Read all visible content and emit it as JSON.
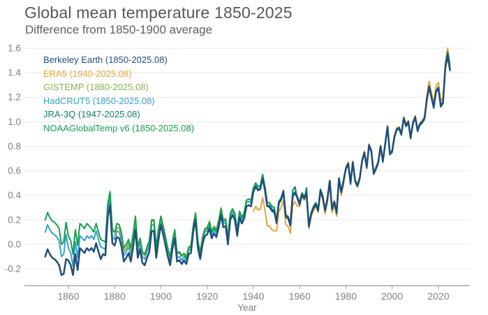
{
  "chart_data": {
    "type": "line",
    "title": "Global mean temperature 1850-2025",
    "subtitle": "Difference from 1850-1900 average",
    "xlabel": "Year",
    "ylabel": "",
    "grid": true,
    "legend_position": "top-left",
    "xlim": [
      1841,
      2033.6
    ],
    "ylim": [
      -0.2,
      1.6
    ],
    "x_ticks": [
      1860,
      1880,
      1900,
      1920,
      1940,
      1960,
      1980,
      2000,
      2020
    ],
    "y_ticks": [
      1.6,
      1.4,
      1.2,
      1.0,
      0.8,
      0.6,
      0.4,
      0.2,
      0.0,
      -0.2
    ],
    "axis_color": "#a6a8ab",
    "grid_color": "#e9e9e9",
    "tick_label_color": "#808184",
    "series": [
      {
        "name": "berkeley-earth",
        "label": "Berkeley Earth (1850-2025.08)",
        "color": "#1f4e79",
        "start_year": 1850,
        "z": 6,
        "line_width": 2.5,
        "values": [
          -0.1,
          -0.04,
          -0.08,
          -0.11,
          -0.12,
          -0.14,
          -0.17,
          -0.25,
          -0.24,
          -0.12,
          -0.13,
          -0.17,
          -0.25,
          -0.08,
          -0.21,
          -0.03,
          -0.05,
          -0.07,
          -0.03,
          -0.05,
          -0.03,
          -0.06,
          0.01,
          -0.06,
          -0.12,
          -0.08,
          -0.09,
          0.22,
          0.32,
          0.01,
          -0.01,
          0.06,
          0.05,
          -0.02,
          -0.14,
          -0.11,
          -0.07,
          -0.14,
          -0.02,
          0.12,
          -0.11,
          -0.04,
          -0.15,
          -0.17,
          -0.11,
          -0.06,
          0.11,
          0.11,
          -0.11,
          0.04,
          0.16,
          0.08,
          -0.01,
          -0.1,
          -0.17,
          -0.04,
          0.05,
          -0.14,
          -0.13,
          -0.16,
          -0.13,
          -0.16,
          -0.08,
          -0.07,
          0.1,
          0.2,
          -0.03,
          -0.12,
          0.0,
          0.07,
          0.08,
          0.13,
          0.05,
          0.09,
          0.06,
          0.14,
          0.24,
          0.14,
          0.15,
          0.0,
          0.2,
          0.24,
          0.2,
          0.07,
          0.22,
          0.17,
          0.21,
          0.31,
          0.32,
          0.31,
          0.43,
          0.47,
          0.44,
          0.45,
          0.54,
          0.44,
          0.31,
          0.31,
          0.28,
          0.27,
          0.18,
          0.34,
          0.37,
          0.43,
          0.23,
          0.22,
          0.16,
          0.39,
          0.42,
          0.38,
          0.33,
          0.41,
          0.38,
          0.41,
          0.15,
          0.25,
          0.3,
          0.33,
          0.28,
          0.44,
          0.39,
          0.28,
          0.37,
          0.52,
          0.29,
          0.35,
          0.26,
          0.54,
          0.43,
          0.52,
          0.62,
          0.66,
          0.5,
          0.67,
          0.52,
          0.48,
          0.54,
          0.68,
          0.75,
          0.63,
          0.81,
          0.76,
          0.58,
          0.62,
          0.67,
          0.8,
          0.68,
          0.82,
          0.96,
          0.74,
          0.76,
          0.88,
          0.94,
          0.95,
          0.9,
          1.03,
          0.97,
          1.0,
          0.87,
          0.99,
          1.04,
          0.93,
          0.98,
          1.0,
          1.03,
          1.18,
          1.29,
          1.2,
          1.12,
          1.25,
          1.28,
          1.13,
          1.16,
          1.44,
          1.54,
          1.42
        ]
      },
      {
        "name": "era5",
        "label": "ERA5 (1940-2025.08)",
        "color": "#e8a33c",
        "start_year": 1940,
        "z": 4,
        "line_width": 2,
        "values": [
          0.27,
          0.31,
          0.28,
          0.29,
          0.38,
          0.28,
          0.15,
          0.15,
          0.12,
          0.11,
          0.11,
          0.27,
          0.3,
          0.36,
          0.16,
          0.15,
          0.09,
          0.32,
          0.35,
          0.31,
          0.31,
          0.39,
          0.36,
          0.39,
          0.13,
          0.23,
          0.28,
          0.31,
          0.26,
          0.42,
          0.36,
          0.25,
          0.34,
          0.49,
          0.26,
          0.32,
          0.23,
          0.51,
          0.4,
          0.49,
          0.63,
          0.67,
          0.51,
          0.68,
          0.53,
          0.49,
          0.55,
          0.69,
          0.76,
          0.64,
          0.82,
          0.77,
          0.59,
          0.63,
          0.68,
          0.81,
          0.69,
          0.83,
          0.97,
          0.75,
          0.77,
          0.89,
          0.95,
          0.96,
          0.91,
          1.04,
          0.98,
          1.01,
          0.88,
          1.0,
          1.05,
          0.94,
          0.99,
          1.01,
          1.04,
          1.22,
          1.33,
          1.24,
          1.16,
          1.29,
          1.32,
          1.17,
          1.2,
          1.48,
          1.6,
          1.47
        ]
      },
      {
        "name": "gistemp",
        "label": "GISTEMP (1880-2025.08)",
        "color": "#84b54a",
        "start_year": 1880,
        "z": 2,
        "line_width": 2,
        "values": [
          0.07,
          0.14,
          0.13,
          0.06,
          -0.06,
          -0.03,
          0.01,
          -0.06,
          0.06,
          0.2,
          -0.03,
          0.04,
          -0.07,
          -0.09,
          -0.03,
          0.02,
          0.19,
          0.19,
          -0.03,
          0.12,
          0.22,
          0.14,
          0.05,
          -0.04,
          -0.11,
          0.02,
          0.11,
          -0.08,
          -0.07,
          -0.1,
          -0.07,
          -0.1,
          -0.02,
          -0.01,
          0.16,
          0.26,
          0.03,
          -0.06,
          0.06,
          0.13,
          0.14,
          0.19,
          0.11,
          0.15,
          0.12,
          0.2,
          0.3,
          0.2,
          0.21,
          0.06,
          0.25,
          0.29,
          0.25,
          0.12,
          0.27,
          0.22,
          0.26,
          0.36,
          0.37,
          0.36,
          0.46,
          0.5,
          0.47,
          0.48,
          0.57,
          0.47,
          0.34,
          0.34,
          0.31,
          0.3,
          0.19,
          0.35,
          0.38,
          0.44,
          0.24,
          0.23,
          0.17,
          0.4,
          0.43,
          0.39,
          0.34,
          0.42,
          0.39,
          0.42,
          0.16,
          0.26,
          0.31,
          0.34,
          0.29,
          0.45,
          0.39,
          0.28,
          0.37,
          0.52,
          0.29,
          0.35,
          0.26,
          0.54,
          0.43,
          0.52,
          0.62,
          0.66,
          0.5,
          0.67,
          0.52,
          0.48,
          0.54,
          0.68,
          0.75,
          0.63,
          0.81,
          0.76,
          0.58,
          0.62,
          0.67,
          0.8,
          0.68,
          0.82,
          0.96,
          0.74,
          0.76,
          0.88,
          0.94,
          0.95,
          0.9,
          1.03,
          0.97,
          1.0,
          0.87,
          0.99,
          1.04,
          0.93,
          0.98,
          1.0,
          1.03,
          1.18,
          1.29,
          1.2,
          1.12,
          1.25,
          1.28,
          1.13,
          1.16,
          1.46,
          1.56,
          1.45
        ]
      },
      {
        "name": "hadcrut5",
        "label": "HadCRUT5 (1850-2025.08)",
        "color": "#35a1cd",
        "start_year": 1850,
        "z": 1,
        "line_width": 2,
        "values": [
          0.1,
          0.16,
          0.12,
          0.09,
          0.08,
          0.06,
          0.03,
          -0.1,
          -0.08,
          0.08,
          -0.03,
          -0.07,
          -0.18,
          0.02,
          -0.11,
          0.07,
          0.05,
          0.03,
          0.07,
          0.05,
          0.07,
          0.04,
          0.11,
          0.04,
          -0.02,
          -0.03,
          -0.04,
          0.27,
          0.37,
          0.06,
          0.04,
          0.11,
          0.1,
          0.03,
          -0.09,
          -0.06,
          -0.02,
          -0.09,
          0.03,
          0.17,
          -0.06,
          0.01,
          -0.1,
          -0.12,
          -0.06,
          -0.01,
          0.16,
          0.16,
          -0.06,
          0.09,
          0.19,
          0.11,
          0.02,
          -0.07,
          -0.14,
          -0.01,
          0.08,
          -0.11,
          -0.1,
          -0.13,
          -0.1,
          -0.13,
          -0.05,
          -0.04,
          0.13,
          0.23,
          0.0,
          -0.09,
          0.03,
          0.1,
          0.11,
          0.16,
          0.08,
          0.12,
          0.09,
          0.17,
          0.27,
          0.17,
          0.18,
          0.03,
          0.23,
          0.27,
          0.23,
          0.1,
          0.25,
          0.2,
          0.24,
          0.34,
          0.35,
          0.34,
          0.44,
          0.48,
          0.45,
          0.46,
          0.55,
          0.45,
          0.32,
          0.32,
          0.29,
          0.28,
          0.19,
          0.35,
          0.38,
          0.44,
          0.24,
          0.23,
          0.17,
          0.4,
          0.43,
          0.39,
          0.34,
          0.42,
          0.39,
          0.42,
          0.16,
          0.26,
          0.31,
          0.34,
          0.29,
          0.45,
          0.39,
          0.28,
          0.37,
          0.52,
          0.29,
          0.35,
          0.26,
          0.54,
          0.43,
          0.52,
          0.62,
          0.66,
          0.5,
          0.67,
          0.52,
          0.48,
          0.54,
          0.68,
          0.75,
          0.63,
          0.81,
          0.76,
          0.58,
          0.62,
          0.67,
          0.8,
          0.68,
          0.82,
          0.96,
          0.74,
          0.76,
          0.88,
          0.94,
          0.95,
          0.9,
          1.03,
          0.97,
          1.0,
          0.87,
          0.99,
          1.04,
          0.93,
          0.98,
          1.0,
          1.03,
          1.18,
          1.29,
          1.2,
          1.12,
          1.25,
          1.28,
          1.13,
          1.16,
          1.45,
          1.55,
          1.44
        ]
      },
      {
        "name": "jra-3q",
        "label": "JRA-3Q (1947-2025.08)",
        "color": "#0e7d72",
        "start_year": 1947,
        "z": 5,
        "line_width": 2,
        "values": [
          0.3,
          0.27,
          0.26,
          0.17,
          0.33,
          0.36,
          0.42,
          0.22,
          0.21,
          0.15,
          0.44,
          0.47,
          0.37,
          0.32,
          0.4,
          0.37,
          0.46,
          0.14,
          0.24,
          0.29,
          0.32,
          0.27,
          0.43,
          0.38,
          0.27,
          0.36,
          0.51,
          0.28,
          0.34,
          0.25,
          0.53,
          0.42,
          0.51,
          0.61,
          0.65,
          0.49,
          0.66,
          0.51,
          0.47,
          0.53,
          0.67,
          0.74,
          0.62,
          0.8,
          0.75,
          0.57,
          0.61,
          0.66,
          0.79,
          0.67,
          0.81,
          0.95,
          0.73,
          0.75,
          0.87,
          0.93,
          0.94,
          0.89,
          1.02,
          0.96,
          0.99,
          0.86,
          0.98,
          1.03,
          0.92,
          0.97,
          0.99,
          1.02,
          1.17,
          1.28,
          1.19,
          1.11,
          1.24,
          1.27,
          1.12,
          1.15,
          1.46,
          1.57,
          1.45
        ]
      },
      {
        "name": "noaaglobaltemp-v6",
        "label": "NOAAGlobalTemp v6 (1850-2025.08)",
        "color": "#149e53",
        "start_year": 1850,
        "z": 3,
        "line_width": 2,
        "values": [
          0.2,
          0.26,
          0.22,
          0.19,
          0.18,
          0.16,
          0.13,
          0.0,
          0.02,
          0.18,
          0.07,
          0.03,
          -0.08,
          0.12,
          -0.01,
          0.17,
          0.15,
          0.13,
          0.17,
          0.15,
          0.13,
          0.1,
          0.17,
          0.1,
          0.04,
          0.03,
          0.02,
          0.33,
          0.43,
          0.12,
          0.1,
          0.17,
          0.16,
          0.09,
          -0.03,
          0.0,
          0.04,
          -0.03,
          0.09,
          0.23,
          -0.02,
          0.05,
          -0.06,
          -0.08,
          -0.02,
          0.03,
          0.2,
          0.2,
          -0.02,
          0.13,
          0.23,
          0.15,
          0.06,
          -0.03,
          -0.1,
          0.03,
          0.12,
          -0.07,
          -0.06,
          -0.09,
          -0.08,
          -0.11,
          -0.03,
          -0.02,
          0.15,
          0.25,
          0.02,
          -0.07,
          0.05,
          0.12,
          0.13,
          0.18,
          0.1,
          0.14,
          0.11,
          0.19,
          0.29,
          0.19,
          0.2,
          0.05,
          0.25,
          0.29,
          0.25,
          0.12,
          0.27,
          0.22,
          0.26,
          0.36,
          0.37,
          0.36,
          0.46,
          0.5,
          0.47,
          0.48,
          0.57,
          0.47,
          0.34,
          0.34,
          0.31,
          0.3,
          0.19,
          0.35,
          0.38,
          0.44,
          0.24,
          0.23,
          0.17,
          0.4,
          0.43,
          0.39,
          0.34,
          0.42,
          0.39,
          0.42,
          0.16,
          0.26,
          0.31,
          0.34,
          0.29,
          0.45,
          0.39,
          0.28,
          0.37,
          0.52,
          0.29,
          0.35,
          0.26,
          0.54,
          0.43,
          0.52,
          0.62,
          0.66,
          0.5,
          0.67,
          0.52,
          0.48,
          0.54,
          0.68,
          0.75,
          0.63,
          0.81,
          0.76,
          0.58,
          0.62,
          0.67,
          0.8,
          0.68,
          0.82,
          0.96,
          0.74,
          0.76,
          0.88,
          0.94,
          0.95,
          0.9,
          1.03,
          0.97,
          1.0,
          0.87,
          0.99,
          1.04,
          0.93,
          0.98,
          1.0,
          1.03,
          1.18,
          1.29,
          1.2,
          1.12,
          1.25,
          1.28,
          1.13,
          1.16,
          1.44,
          1.53,
          1.43
        ]
      }
    ]
  }
}
